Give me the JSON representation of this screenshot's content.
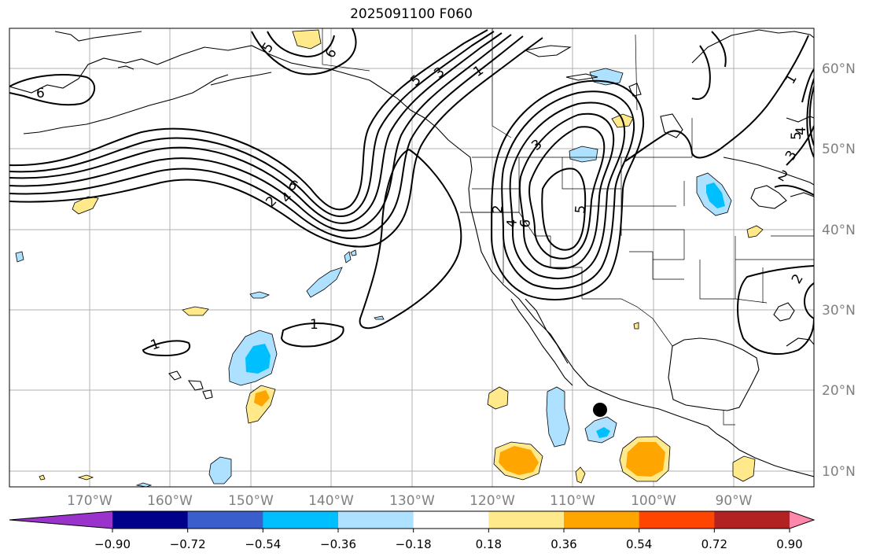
{
  "title": "2025091100 F060",
  "lat_labels": [
    "60°N",
    "50°N",
    "40°N",
    "30°N",
    "20°N",
    "10°N"
  ],
  "lon_labels": [
    "170°W",
    "160°W",
    "150°W",
    "140°W",
    "130°W",
    "120°W",
    "110°W",
    "100°W",
    "90°W"
  ],
  "colorbar": {
    "ticks": [
      "−0.90",
      "−0.72",
      "−0.54",
      "−0.36",
      "−0.18",
      "0.18",
      "0.36",
      "0.54",
      "0.72",
      "0.90"
    ],
    "colors": [
      "#9933cc",
      "#00008b",
      "#3a5fcd",
      "#00bfff",
      "#aee1ff",
      "#ffffff",
      "#ffe98a",
      "#ffa500",
      "#ff4500",
      "#b22222",
      "#ff88aa"
    ]
  },
  "contour_labels": [
    "6",
    "5",
    "6",
    "5",
    "3",
    "1",
    "6",
    "2",
    "4",
    "1",
    "1",
    "3",
    "2",
    "5",
    "6",
    "4",
    "1",
    "5",
    "4",
    "3",
    "2",
    "2"
  ],
  "marker": "storm-center"
}
